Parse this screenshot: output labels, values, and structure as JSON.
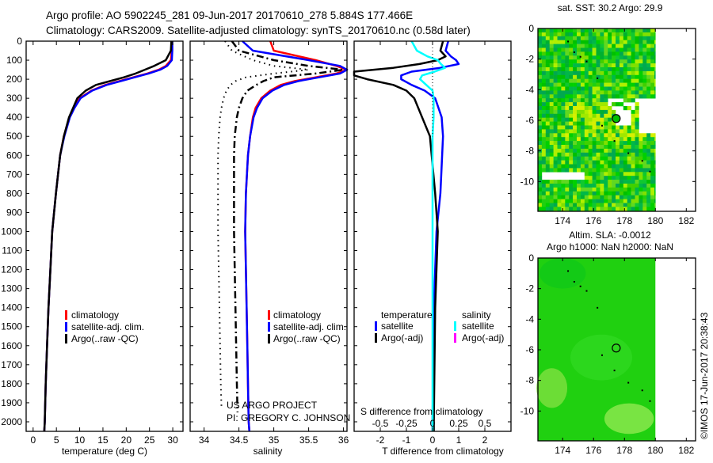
{
  "header": {
    "title_line1": "Argo profile: AO 5902245_281 09-Jun-2017 20170610_278 5.884S 177.466E",
    "title_line2": "Climatology: CARS2009. Satellite-adjusted climatology: synTS_20170610.nc (0.58d later)"
  },
  "credits": {
    "project": "US ARGO PROJECT",
    "pi": "PI: GREGORY C. JOHNSON",
    "imos": "©IMOS 17-Jun-2017 20:38:43"
  },
  "colors": {
    "climatology": "#ff0000",
    "satellite": "#0000ff",
    "argo": "#000000",
    "sal_satellite": "#00ffff",
    "sal_argo": "#ff00ff"
  },
  "chart_data": [
    {
      "type": "line",
      "id": "temperature",
      "xlabel": "temperature (deg C)",
      "ylabel": "",
      "xlim": [
        -1.5,
        32.2
      ],
      "ylim": [
        2050,
        0
      ],
      "xticks": [
        0,
        5,
        10,
        15,
        20,
        25,
        30
      ],
      "yticks": [
        0,
        100,
        200,
        300,
        400,
        500,
        600,
        700,
        800,
        900,
        1000,
        1100,
        1200,
        1300,
        1400,
        1500,
        1600,
        1700,
        1800,
        1900,
        2000
      ],
      "legend": [
        "climatology",
        "satellite-adj. clim.",
        "Argo(..raw -QC)"
      ],
      "series": [
        {
          "name": "climatology",
          "color": "#ff0000",
          "style": "solid",
          "depth": [
            0,
            50,
            100,
            130,
            150,
            170,
            190,
            210,
            230,
            260,
            300,
            350,
            400,
            500,
            600,
            800,
            1000,
            1200,
            1400,
            1600,
            1800,
            2000,
            2050
          ],
          "values": [
            29.8,
            29.8,
            29.6,
            28.5,
            27,
            24.5,
            21.5,
            18.5,
            15.5,
            12.5,
            10,
            8.8,
            7.8,
            6.6,
            5.8,
            4.9,
            4.1,
            3.7,
            3.3,
            3.0,
            2.7,
            2.5,
            2.4
          ]
        },
        {
          "name": "satellite-adj. clim.",
          "color": "#0000ff",
          "style": "solid",
          "depth": [
            0,
            50,
            100,
            130,
            150,
            170,
            190,
            210,
            230,
            260,
            300,
            350,
            400,
            500,
            600,
            800,
            1000,
            1200,
            1400,
            1600,
            1800,
            2000,
            2050
          ],
          "values": [
            29.9,
            29.9,
            29.8,
            28.8,
            27.3,
            24.8,
            21.8,
            18.8,
            15.8,
            12.7,
            10.2,
            8.9,
            7.9,
            6.7,
            5.8,
            4.9,
            4.1,
            3.7,
            3.3,
            3.0,
            2.7,
            2.5,
            2.4
          ]
        },
        {
          "name": "Argo(..raw -QC)",
          "color": "#000000",
          "style": "solid",
          "depth": [
            0,
            50,
            100,
            130,
            150,
            170,
            190,
            210,
            230,
            260,
            300,
            350,
            400,
            500,
            600,
            800,
            1000,
            1200,
            1400,
            1600,
            1800,
            2000,
            2050
          ],
          "values": [
            29.7,
            29.6,
            28.5,
            26,
            24,
            22,
            19.5,
            16.5,
            13.5,
            11.3,
            9.5,
            8.6,
            7.7,
            6.6,
            5.8,
            4.9,
            4.1,
            3.7,
            3.3,
            3.0,
            2.7,
            2.5,
            2.4
          ]
        }
      ]
    },
    {
      "type": "line",
      "id": "salinity",
      "xlabel": "salinity",
      "ylabel": "",
      "xlim": [
        33.8,
        36.05
      ],
      "ylim": [
        2050,
        0
      ],
      "xticks": [
        34,
        34.5,
        35,
        35.5,
        36
      ],
      "legend": [
        "climatology",
        "satellite-adj. clim.",
        "Argo(..raw -QC)"
      ],
      "series": [
        {
          "name": "Argo raw (dotted)",
          "color": "#000000",
          "style": "dotted",
          "depth": [
            0,
            50,
            100,
            130,
            150,
            170,
            190,
            210,
            230,
            260,
            300,
            350,
            400,
            500,
            600,
            800,
            1000,
            1200,
            1400,
            1600,
            1800,
            1930
          ],
          "values": [
            34.3,
            34.4,
            34.7,
            35.0,
            35.5,
            35.0,
            34.6,
            34.45,
            34.38,
            34.32,
            34.28,
            34.25,
            34.23,
            34.21,
            34.2,
            34.2,
            34.2,
            34.21,
            34.22,
            34.23,
            34.24,
            34.25
          ]
        },
        {
          "name": "Argo(..raw -QC)",
          "color": "#000000",
          "style": "dashdot",
          "depth": [
            0,
            50,
            100,
            130,
            150,
            170,
            190,
            210,
            230,
            260,
            300,
            350,
            400,
            500,
            600,
            800,
            1000,
            1200,
            1400,
            1600,
            1800,
            1950
          ],
          "values": [
            34.4,
            34.5,
            35.0,
            35.5,
            36.0,
            35.6,
            35.0,
            34.85,
            34.75,
            34.62,
            34.55,
            34.5,
            34.47,
            34.44,
            34.43,
            34.43,
            34.43,
            34.44,
            34.45,
            34.46,
            34.47,
            34.48
          ]
        },
        {
          "name": "climatology",
          "color": "#ff0000",
          "style": "solid",
          "depth": [
            0,
            50,
            100,
            130,
            150,
            170,
            190,
            210,
            230,
            260,
            300,
            350,
            400,
            500,
            600,
            800,
            1000,
            1200,
            1400,
            1600,
            1800,
            2000,
            2050
          ],
          "values": [
            34.95,
            35.0,
            35.6,
            35.9,
            36.05,
            35.9,
            35.6,
            35.3,
            35.1,
            34.95,
            34.82,
            34.74,
            34.7,
            34.66,
            34.63,
            34.6,
            34.59,
            34.6,
            34.61,
            34.62,
            34.63,
            34.64,
            34.65
          ]
        },
        {
          "name": "satellite-adj. clim.",
          "color": "#0000ff",
          "style": "solid",
          "depth": [
            0,
            50,
            100,
            130,
            150,
            170,
            190,
            210,
            230,
            260,
            300,
            350,
            400,
            500,
            600,
            800,
            1000,
            1200,
            1400,
            1600,
            1800,
            2000,
            2050
          ],
          "values": [
            34.55,
            34.7,
            35.5,
            35.95,
            36.05,
            35.95,
            35.65,
            35.35,
            35.15,
            34.98,
            34.84,
            34.76,
            34.71,
            34.66,
            34.63,
            34.6,
            34.59,
            34.6,
            34.61,
            34.62,
            34.63,
            34.64,
            34.65
          ]
        }
      ]
    },
    {
      "type": "line",
      "id": "difference",
      "xlabel": "T difference from climatology",
      "xlabel_top": "S difference from climatology",
      "xlim": [
        -3,
        3
      ],
      "ylim": [
        2050,
        0
      ],
      "xticks": [
        -2,
        -1,
        0,
        1,
        2
      ],
      "xticks_s": [
        -0.5,
        -0.25,
        0,
        0.25,
        0.5
      ],
      "legend_titles": [
        "temperature",
        "salinity"
      ],
      "legend": [
        "satellite",
        "Argo(-adj)",
        "satellite",
        "Argo(-adj)"
      ],
      "series": [
        {
          "name": "T satellite",
          "color": "#0000ff",
          "units": "T",
          "depth": [
            0,
            50,
            80,
            100,
            120,
            140,
            160,
            180,
            200,
            230,
            260,
            300,
            400,
            500,
            800,
            1000,
            1400,
            2000,
            2050
          ],
          "values": [
            0.6,
            0.5,
            0.7,
            0.9,
            1.0,
            0.3,
            -0.8,
            -1.2,
            -1.2,
            -0.8,
            -0.3,
            0.1,
            0.35,
            0.4,
            0.3,
            0.15,
            0.05,
            0,
            0
          ]
        },
        {
          "name": "T Argo(-adj)",
          "color": "#000000",
          "units": "T",
          "depth": [
            0,
            50,
            80,
            100,
            120,
            140,
            160,
            180,
            200,
            230,
            260,
            300,
            400,
            500,
            800,
            1000,
            1400,
            2000,
            2050
          ],
          "values": [
            0.4,
            0.3,
            0.5,
            0.2,
            -0.5,
            -1.5,
            -3,
            -3,
            -2.5,
            -1.5,
            -1.0,
            -0.7,
            -0.4,
            -0.1,
            0.1,
            0.2,
            0.1,
            0.05,
            0.05
          ]
        },
        {
          "name": "S satellite",
          "color": "#00ffff",
          "units": "S",
          "depth": [
            0,
            50,
            80,
            100,
            120,
            140,
            160,
            180,
            200,
            230,
            260,
            300,
            400,
            500,
            800,
            1000,
            1400,
            2000,
            2050
          ],
          "values": [
            -0.2,
            -0.15,
            -0.05,
            0.05,
            0.08,
            0.12,
            0.02,
            -0.1,
            -0.12,
            -0.06,
            0,
            0.01,
            0.01,
            0,
            0,
            0,
            0,
            0,
            0
          ]
        }
      ]
    },
    {
      "type": "heatmap",
      "id": "sst-map",
      "title": "sat. SST: 30.2 Argo: 29.9",
      "xlim": [
        172.4,
        182.6
      ],
      "ylim": [
        -11.95,
        0
      ],
      "xticks": [
        174,
        176,
        178,
        180,
        182
      ],
      "yticks": [
        0,
        -2,
        -4,
        -6,
        -8,
        -10
      ],
      "float_position": {
        "lon": 177.466,
        "lat": -5.884
      }
    },
    {
      "type": "heatmap",
      "id": "sla-map",
      "title": "Altim. SLA: -0.0012",
      "subtitle": "Argo h1000: NaN h2000: NaN",
      "xlim": [
        172.4,
        182.6
      ],
      "ylim": [
        -11.95,
        0
      ],
      "xticks": [
        174,
        176,
        178,
        180,
        182
      ],
      "yticks": [
        0,
        -2,
        -4,
        -6,
        -8,
        -10
      ],
      "float_position": {
        "lon": 177.466,
        "lat": -5.884
      }
    }
  ]
}
